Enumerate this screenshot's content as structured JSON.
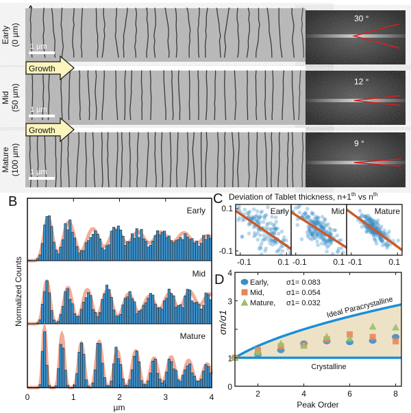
{
  "panel_labels": {
    "a": "A",
    "b": "B",
    "c": "C",
    "d": "D"
  },
  "panel_a": {
    "rows": [
      {
        "stage": "Early",
        "depth": "(0 µm)",
        "scale_bar": "1 µm",
        "fft_angle": "30 °",
        "angle_deg": 30
      },
      {
        "stage": "Mid",
        "depth": "(50 µm)",
        "scale_bar": "1 µm",
        "fft_angle": "12 °",
        "angle_deg": 12
      },
      {
        "stage": "Mature",
        "depth": "(100 µm)",
        "scale_bar": "1 µm",
        "fft_angle": "9 °",
        "angle_deg": 9
      }
    ],
    "arrow_label": "Growth",
    "colors": {
      "arrow_fill": "#fbf5bd",
      "wedge": "#d42020"
    }
  },
  "chart_data": [
    {
      "panel": "B",
      "type": "bar",
      "xlabel": "µm",
      "ylabel": "Normalized Counts",
      "xlim": [
        0,
        4
      ],
      "xticks": [
        "0",
        "1",
        "2",
        "3",
        "4"
      ],
      "colors": {
        "bars": "#3c8fc8",
        "fit": "#eb9a82"
      },
      "series": [
        {
          "name": "Early",
          "peaks": [
            [
              0.45,
              0.95,
              0.09
            ],
            [
              0.9,
              0.85,
              0.12
            ],
            [
              1.42,
              0.7,
              0.14
            ],
            [
              1.92,
              0.68,
              0.15
            ],
            [
              2.4,
              0.62,
              0.16
            ],
            [
              2.9,
              0.62,
              0.17
            ],
            [
              3.4,
              0.6,
              0.17
            ],
            [
              3.92,
              0.55,
              0.18
            ]
          ]
        },
        {
          "name": "Mid",
          "peaks": [
            [
              0.42,
              1.0,
              0.07
            ],
            [
              0.88,
              0.85,
              0.09
            ],
            [
              1.3,
              0.8,
              0.1
            ],
            [
              1.73,
              0.78,
              0.11
            ],
            [
              2.2,
              0.7,
              0.12
            ],
            [
              2.65,
              0.65,
              0.13
            ],
            [
              3.08,
              0.7,
              0.13
            ],
            [
              3.52,
              0.75,
              0.14
            ],
            [
              3.95,
              0.7,
              0.14
            ]
          ]
        },
        {
          "name": "Mature",
          "peaks": [
            [
              0.37,
              1.0,
              0.04
            ],
            [
              0.75,
              0.9,
              0.05
            ],
            [
              1.17,
              0.75,
              0.06
            ],
            [
              1.56,
              0.78,
              0.065
            ],
            [
              1.95,
              0.62,
              0.07
            ],
            [
              2.35,
              0.62,
              0.075
            ],
            [
              2.75,
              0.5,
              0.08
            ],
            [
              3.12,
              0.52,
              0.085
            ],
            [
              3.5,
              0.46,
              0.09
            ],
            [
              3.9,
              0.4,
              0.095
            ]
          ]
        }
      ]
    },
    {
      "panel": "C",
      "type": "scatter",
      "title": "Deviation of Tablet thickness, n+1",
      "title_sup1": "th",
      "title_mid": " vs n",
      "title_sup2": "th",
      "xlim": [
        -0.12,
        0.12
      ],
      "ylim": [
        -0.12,
        0.12
      ],
      "xticks": [
        "-0.1",
        "0.1"
      ],
      "yticks": [
        "0.1",
        "-0.1"
      ],
      "colors": {
        "points": "#3c8fc8",
        "fit": "#cc5a28"
      },
      "series": [
        {
          "name": "Early",
          "n": 170,
          "spread": 0.07,
          "slope": -0.75
        },
        {
          "name": "Mid",
          "n": 190,
          "spread": 0.045,
          "slope": -0.7
        },
        {
          "name": "Mature",
          "n": 200,
          "spread": 0.03,
          "slope": -0.8
        }
      ]
    },
    {
      "panel": "D",
      "type": "scatter",
      "xlabel": "Peak Order",
      "ylabel": "σn/σ1",
      "xlim": [
        1,
        8.25
      ],
      "ylim": [
        0,
        4
      ],
      "xticks": [
        2,
        4,
        6,
        8
      ],
      "yticks": [
        0,
        1,
        3,
        4
      ],
      "x": [
        1,
        2,
        3,
        4,
        5,
        6,
        7,
        8
      ],
      "series": [
        {
          "name": "Early,",
          "sigma_label": "σ1= 0.083",
          "marker": "circle",
          "color": "#3c8fc8",
          "values": [
            1.0,
            1.12,
            1.27,
            1.5,
            1.58,
            1.55,
            1.6,
            1.73
          ]
        },
        {
          "name": "Mid,",
          "sigma_label": "σ1= 0.054",
          "marker": "square",
          "color": "#e8875a",
          "values": [
            1.0,
            1.27,
            1.4,
            1.43,
            1.65,
            1.82,
            1.73,
            1.58
          ]
        },
        {
          "name": "Mature,",
          "sigma_label": "σ1= 0.032",
          "marker": "triangle",
          "color": "#9cc06a",
          "values": [
            1.0,
            1.2,
            1.5,
            1.43,
            1.75,
            1.68,
            2.1,
            2.07
          ]
        }
      ],
      "curves": {
        "ideal_label": "Ideal Paracrystalline",
        "crystalline_label": "Crystalline",
        "line_color": "#1a8fd6",
        "fill_color": "#eee2c6"
      },
      "legend_position": "top-left"
    }
  ]
}
